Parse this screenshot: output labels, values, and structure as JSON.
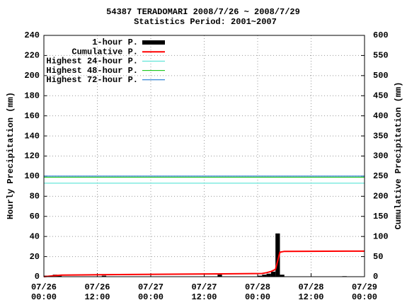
{
  "chart_data": {
    "type": "bar",
    "title": "54387 TERADOMARI  2008/7/26 ~ 2008/7/29",
    "subtitle": "Statistics Period: 2001~2007",
    "y_label": "Hourly Precipitation (mm)",
    "y2_label": "Cumulative Precipitation (mm)",
    "xlim": [
      0,
      72
    ],
    "xticks": [
      {
        "value": 0,
        "label": "07/26 00:00"
      },
      {
        "value": 12,
        "label": "07/26 12:00"
      },
      {
        "value": 24,
        "label": "07/27 00:00"
      },
      {
        "value": 36,
        "label": "07/27 12:00"
      },
      {
        "value": 48,
        "label": "07/28 00:00"
      },
      {
        "value": 60,
        "label": "07/28 12:00"
      },
      {
        "value": 72,
        "label": "07/29 00:00"
      }
    ],
    "ylim": [
      0,
      240
    ],
    "yticks": [
      0,
      20,
      40,
      60,
      80,
      100,
      120,
      140,
      160,
      180,
      200,
      220,
      240
    ],
    "y2lim": [
      0,
      600
    ],
    "y2ticks": [
      0,
      50,
      100,
      150,
      200,
      250,
      300,
      350,
      400,
      450,
      500,
      550,
      600
    ],
    "grid": true,
    "legend": "upper-left",
    "series": [
      {
        "name": "1-hour P.",
        "color": "#000000",
        "kind": "bar",
        "x": [
          1,
          3,
          4,
          14,
          40,
          49,
          50,
          51,
          52,
          53,
          54,
          68
        ],
        "values": [
          1,
          2,
          1,
          1,
          2,
          1,
          2,
          3,
          5,
          43,
          2,
          0.5
        ]
      },
      {
        "name": "Cumulative P.",
        "color": "#ff0000",
        "kind": "line",
        "axis": "y2",
        "x": [
          0,
          1,
          3,
          4,
          14,
          40,
          49,
          50,
          51,
          52,
          53,
          54,
          68,
          72
        ],
        "values": [
          0,
          1,
          3,
          4,
          5,
          7,
          8,
          10,
          13,
          18,
          61,
          63,
          63.5,
          63.5
        ]
      },
      {
        "name": "Highest 24-hour P.",
        "color": "#40e0d0",
        "kind": "hline",
        "values": [
          93
        ]
      },
      {
        "name": "Highest 48-hour P.",
        "color": "#00c000",
        "kind": "hline",
        "values": [
          99
        ]
      },
      {
        "name": "Highest 72-hour P.",
        "color": "#0066cc",
        "kind": "hline",
        "values": [
          100
        ]
      }
    ]
  }
}
